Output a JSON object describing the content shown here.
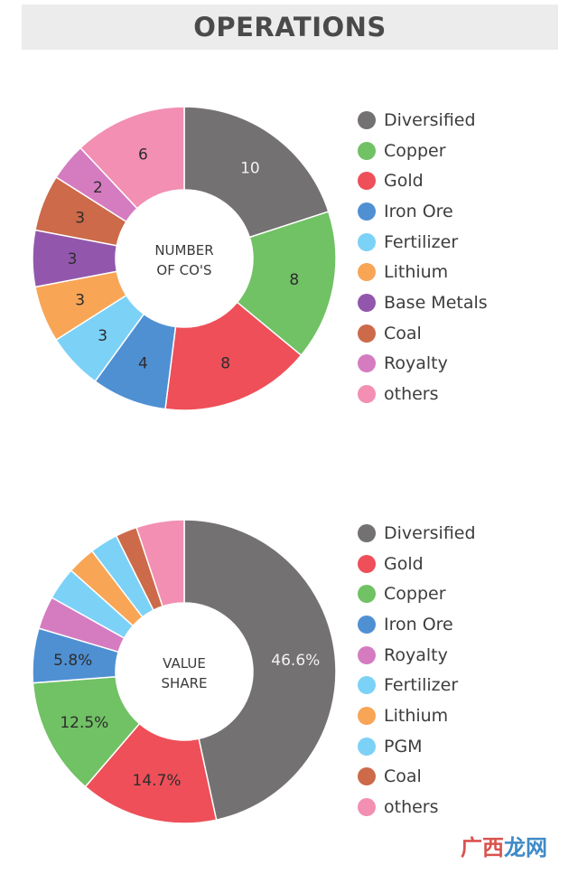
{
  "header": {
    "title": "OPERATIONS"
  },
  "watermark": {
    "part1": "广西",
    "part2": "龙网"
  },
  "chart_data": [
    {
      "type": "pie",
      "subtype": "donut",
      "center_label": [
        "NUMBER",
        "OF CO'S"
      ],
      "series": [
        {
          "category": "Diversified",
          "value": 10,
          "label": "10",
          "color": "#737172"
        },
        {
          "category": "Copper",
          "value": 8,
          "label": "8",
          "color": "#71c165"
        },
        {
          "category": "Gold",
          "value": 8,
          "label": "8",
          "color": "#ee4f58"
        },
        {
          "category": "Iron Ore",
          "value": 4,
          "label": "4",
          "color": "#4f90d3"
        },
        {
          "category": "Fertilizer",
          "value": 3,
          "label": "3",
          "color": "#7cd1f7"
        },
        {
          "category": "Lithium",
          "value": 3,
          "label": "3",
          "color": "#f8a556"
        },
        {
          "category": "Base Metals",
          "value": 3,
          "label": "3",
          "color": "#9257ac"
        },
        {
          "category": "Coal",
          "value": 3,
          "label": "3",
          "color": "#cc6a4a"
        },
        {
          "category": "Royalty",
          "value": 2,
          "label": "2",
          "color": "#d57cc1"
        },
        {
          "category": "others",
          "value": 6,
          "label": "6",
          "color": "#f28fb2"
        }
      ],
      "legend": [
        "Diversified",
        "Copper",
        "Gold",
        "Iron Ore",
        "Fertilizer",
        "Lithium",
        "Base Metals",
        "Coal",
        "Royalty",
        "others"
      ],
      "legend_colors": [
        "#737172",
        "#71c165",
        "#ee4f58",
        "#4f90d3",
        "#7cd1f7",
        "#f8a556",
        "#9257ac",
        "#cc6a4a",
        "#d57cc1",
        "#f28fb2"
      ],
      "legend_position": "right"
    },
    {
      "type": "pie",
      "subtype": "donut",
      "center_label": [
        "VALUE",
        "SHARE"
      ],
      "series": [
        {
          "category": "Diversified",
          "value": 46.6,
          "label": "46.6%",
          "color": "#737172"
        },
        {
          "category": "Gold",
          "value": 14.7,
          "label": "14.7%",
          "color": "#ee4f58"
        },
        {
          "category": "Copper",
          "value": 12.5,
          "label": "12.5%",
          "color": "#71c165"
        },
        {
          "category": "Iron Ore",
          "value": 5.8,
          "label": "5.8%",
          "color": "#4f90d3"
        },
        {
          "category": "Royalty",
          "value": 3.5,
          "label": "",
          "color": "#d57cc1"
        },
        {
          "category": "Fertilizer",
          "value": 3.5,
          "label": "",
          "color": "#7cd1f7"
        },
        {
          "category": "Lithium",
          "value": 3.0,
          "label": "",
          "color": "#f8a556"
        },
        {
          "category": "PGM",
          "value": 3.0,
          "label": "",
          "color": "#7cd1f7"
        },
        {
          "category": "Coal",
          "value": 2.3,
          "label": "",
          "color": "#cc6a4a"
        },
        {
          "category": "others",
          "value": 5.1,
          "label": "",
          "color": "#f28fb2"
        }
      ],
      "legend": [
        "Diversified",
        "Gold",
        "Copper",
        "Iron Ore",
        "Royalty",
        "Fertilizer",
        "Lithium",
        "PGM",
        "Coal",
        "others"
      ],
      "legend_colors": [
        "#737172",
        "#ee4f58",
        "#71c165",
        "#4f90d3",
        "#d57cc1",
        "#7cd1f7",
        "#f8a556",
        "#7cd1f7",
        "#cc6a4a",
        "#f28fb2"
      ],
      "legend_position": "right"
    }
  ]
}
